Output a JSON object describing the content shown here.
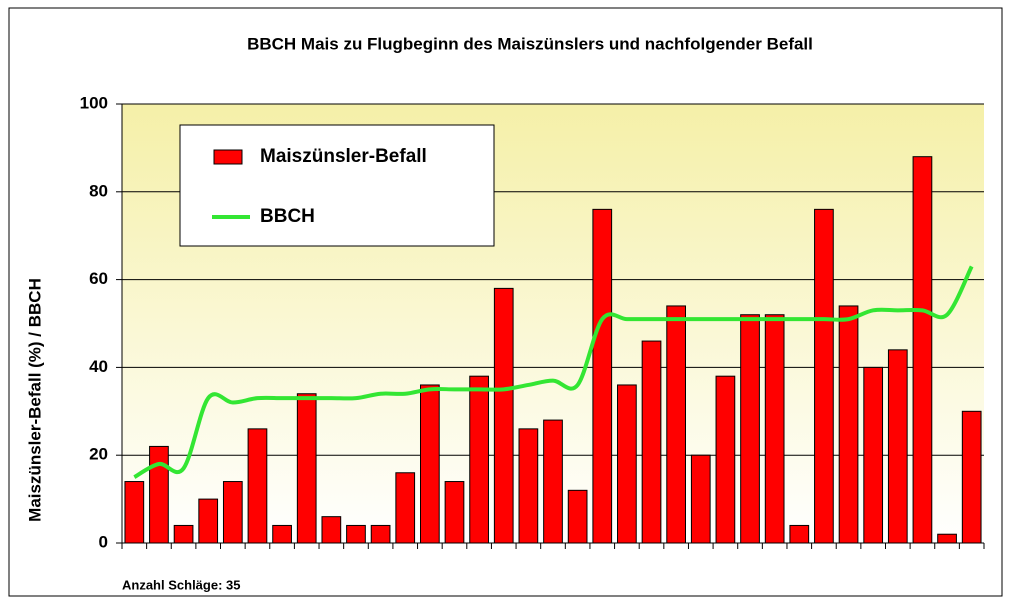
{
  "chart_data": {
    "type": "bar",
    "title": "BBCH Mais zu Flugbeginn des Maiszünslers und nachfolgender Befall",
    "ylabel": "Maiszünsler-Befall (%) / BBCH",
    "annotation": "Anzahl Schläge: 35",
    "categories": [
      null,
      null,
      null,
      null,
      null,
      null,
      null,
      null,
      null,
      null,
      null,
      null,
      null,
      null,
      null,
      null,
      null,
      null,
      null,
      null,
      null,
      null,
      null,
      null,
      null,
      null,
      null,
      null,
      null,
      null,
      null,
      null,
      null,
      null,
      null
    ],
    "series": [
      {
        "name": "Maiszünsler-Befall",
        "type": "bar",
        "color": "#ff0000",
        "values": [
          14,
          22,
          4,
          10,
          14,
          26,
          4,
          34,
          6,
          4,
          4,
          16,
          36,
          14,
          38,
          58,
          26,
          28,
          12,
          76,
          36,
          46,
          54,
          20,
          38,
          52,
          52,
          4,
          76,
          54,
          40,
          44,
          88,
          2,
          30
        ]
      },
      {
        "name": "BBCH",
        "type": "line",
        "color": "#33e633",
        "values": [
          15,
          18,
          17,
          33,
          32,
          33,
          33,
          33,
          33,
          33,
          34,
          34,
          35,
          35,
          35,
          35,
          36,
          37,
          36,
          51,
          51,
          51,
          51,
          51,
          51,
          51,
          51,
          51,
          51,
          51,
          53,
          53,
          53,
          52,
          63
        ]
      }
    ],
    "ylim": [
      0,
      100
    ],
    "yticks": [
      0,
      20,
      40,
      60,
      80,
      100
    ],
    "grid": true,
    "legend": "upper left"
  }
}
